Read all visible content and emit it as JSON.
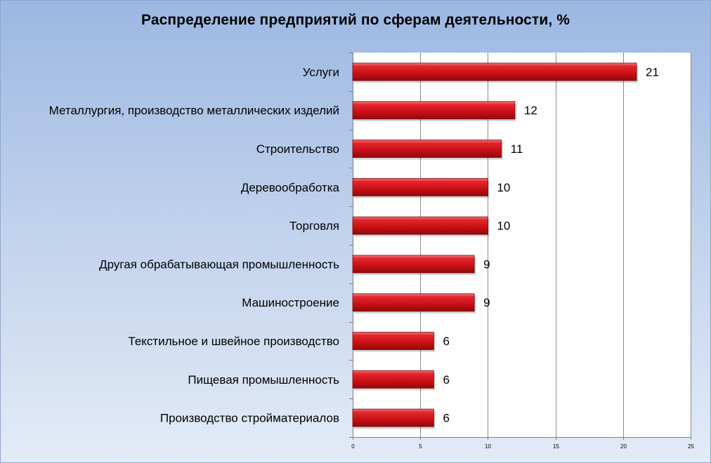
{
  "chart_data": {
    "type": "bar",
    "orientation": "horizontal",
    "title": "Распределение предприятий по сферам деятельности, %",
    "categories": [
      "Услуги",
      "Металлургия, производство металлических изделий",
      "Строительство",
      "Деревообработка",
      "Торговля",
      "Другая обрабатывающая промышленность",
      "Машиностроение",
      "Текстильное и швейное производство",
      "Пищевая промышленность",
      "Производство стройматериалов"
    ],
    "values": [
      21,
      12,
      11,
      10,
      10,
      9,
      9,
      6,
      6,
      6
    ],
    "data_labels": [
      "21",
      "12",
      "11",
      "10",
      "10",
      "9",
      "9",
      "6",
      "6",
      "6"
    ],
    "xlim": [
      0,
      25
    ],
    "x_ticks": [
      0,
      5,
      10,
      15,
      20,
      25
    ],
    "x_tick_labels": [
      "0",
      "5",
      "10",
      "15",
      "20",
      "25"
    ],
    "grid": "vertical",
    "legend": "none",
    "colors": {
      "bar": "#d10f16",
      "bar_dark": "#8e0a0d",
      "bar_light": "#f07a7b",
      "plot_background": "#ffffff",
      "gridline": "#8a8a8a",
      "background_top": "#9cb7e2",
      "background_bottom": "#e3ebf7"
    }
  }
}
